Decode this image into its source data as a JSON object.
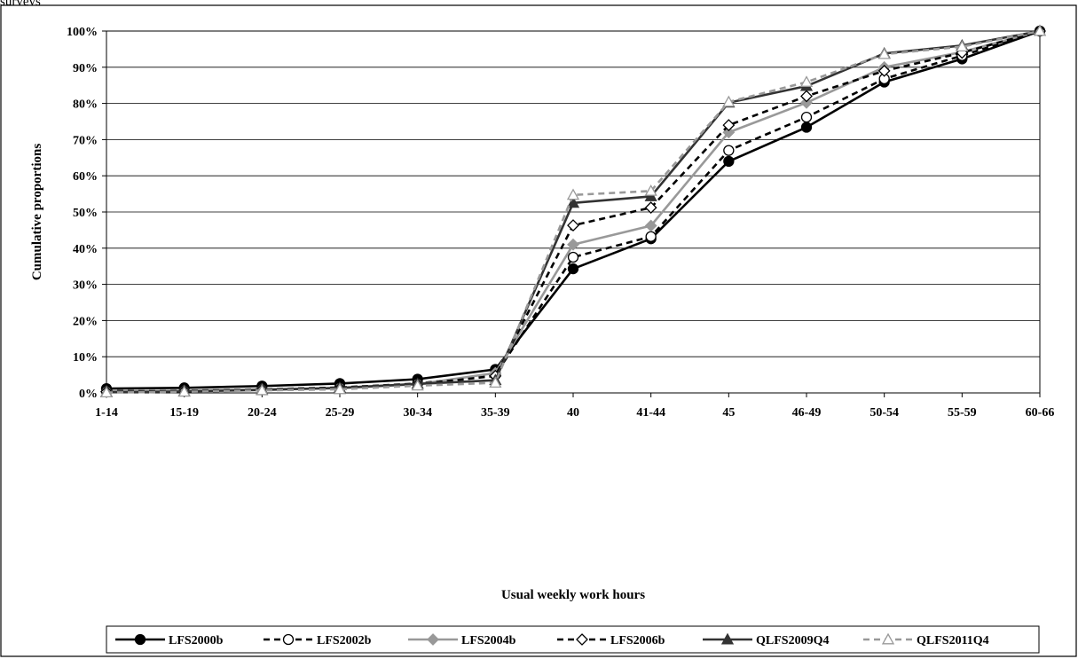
{
  "caption": "surveys",
  "chart_data": {
    "type": "line",
    "title": "",
    "xlabel": "Usual weekly work hours",
    "ylabel": "Cumulative proportions",
    "ylim": [
      0,
      100
    ],
    "y_ticks": [
      "0%",
      "10%",
      "20%",
      "30%",
      "40%",
      "50%",
      "60%",
      "70%",
      "80%",
      "90%",
      "100%"
    ],
    "categories": [
      "1-14",
      "15-19",
      "20-24",
      "25-29",
      "30-34",
      "35-39",
      "40",
      "41-44",
      "45",
      "46-49",
      "50-54",
      "55-59",
      "60-66"
    ],
    "grid": "horizontal",
    "legend_position": "bottom",
    "series": [
      {
        "name": "LFS2000b",
        "color": "#000000",
        "dash": "solid",
        "marker": "circle-filled",
        "values": [
          1.2,
          1.4,
          1.9,
          2.6,
          3.8,
          6.5,
          34.3,
          42.6,
          64.0,
          73.4,
          85.9,
          92.3,
          100
        ]
      },
      {
        "name": "LFS2002b",
        "color": "#000000",
        "dash": "dashed",
        "marker": "circle-open",
        "values": [
          0.5,
          0.6,
          1.0,
          1.5,
          2.6,
          5.0,
          37.5,
          43.2,
          67.0,
          76.2,
          86.8,
          93.2,
          100
        ]
      },
      {
        "name": "LFS2004b",
        "color": "#999999",
        "dash": "solid",
        "marker": "diamond-filled",
        "values": [
          0.4,
          0.6,
          1.0,
          1.3,
          2.4,
          5.5,
          41.0,
          46.2,
          72.0,
          80.2,
          90.0,
          94.2,
          100
        ]
      },
      {
        "name": "LFS2006b",
        "color": "#000000",
        "dash": "dashed",
        "marker": "diamond-open",
        "values": [
          0.3,
          0.5,
          0.9,
          1.3,
          2.4,
          4.7,
          46.3,
          51.2,
          74.0,
          82.0,
          89.0,
          94.0,
          100
        ]
      },
      {
        "name": "QLFS2009Q4",
        "color": "#333333",
        "dash": "solid",
        "marker": "triangle-filled",
        "values": [
          0.2,
          0.4,
          0.8,
          1.4,
          2.5,
          3.5,
          52.5,
          54.3,
          80.2,
          84.8,
          93.8,
          96.0,
          100
        ]
      },
      {
        "name": "QLFS2011Q4",
        "color": "#999999",
        "dash": "dashed",
        "marker": "triangle-open",
        "values": [
          0.1,
          0.3,
          0.7,
          1.0,
          2.0,
          2.8,
          54.7,
          55.8,
          80.4,
          85.9,
          93.6,
          95.7,
          100
        ]
      }
    ]
  }
}
